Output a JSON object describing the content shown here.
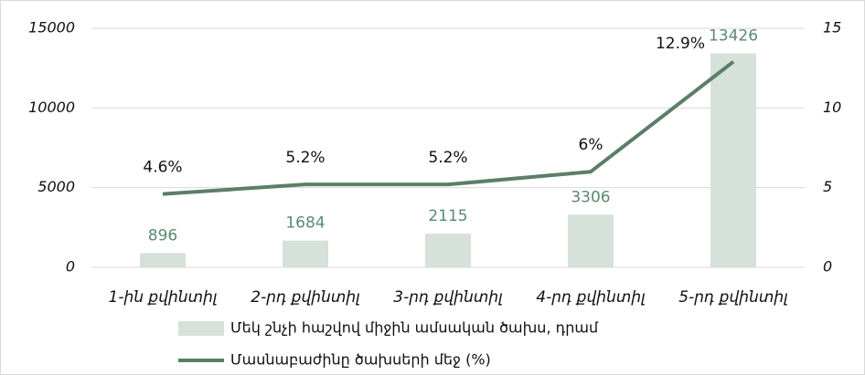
{
  "chart_data": {
    "type": "bar",
    "categories": [
      "1-ին քվինտիլ",
      "2-րդ քվինտիլ",
      "3-րդ քվինտիլ",
      "4-րդ քվինտիլ",
      "5-րդ քվինտիլ"
    ],
    "series": [
      {
        "name": "Մեկ շնչի հաշվով միջին ամսական ծախս, դրամ",
        "type": "bar",
        "color": "#d6e2d9",
        "label_color": "#5a8a6f",
        "values": [
          896,
          1684,
          2115,
          3306,
          13426
        ]
      },
      {
        "name": "Մասնաբաժինը ծախսերի մեջ (%)",
        "type": "line",
        "axis": "y2",
        "color": "#5b7e68",
        "values": [
          4.6,
          5.2,
          5.2,
          6,
          12.9
        ],
        "value_labels": [
          "4.6%",
          "5.2%",
          "5.2%",
          "6%",
          "12.9%"
        ]
      }
    ],
    "ylim": [
      0,
      15000
    ],
    "yticks": [
      0,
      5000,
      10000,
      15000
    ],
    "y2lim": [
      0,
      15
    ],
    "y2ticks": [
      0,
      5,
      10,
      15
    ],
    "grid": true,
    "legend": "bottom"
  }
}
